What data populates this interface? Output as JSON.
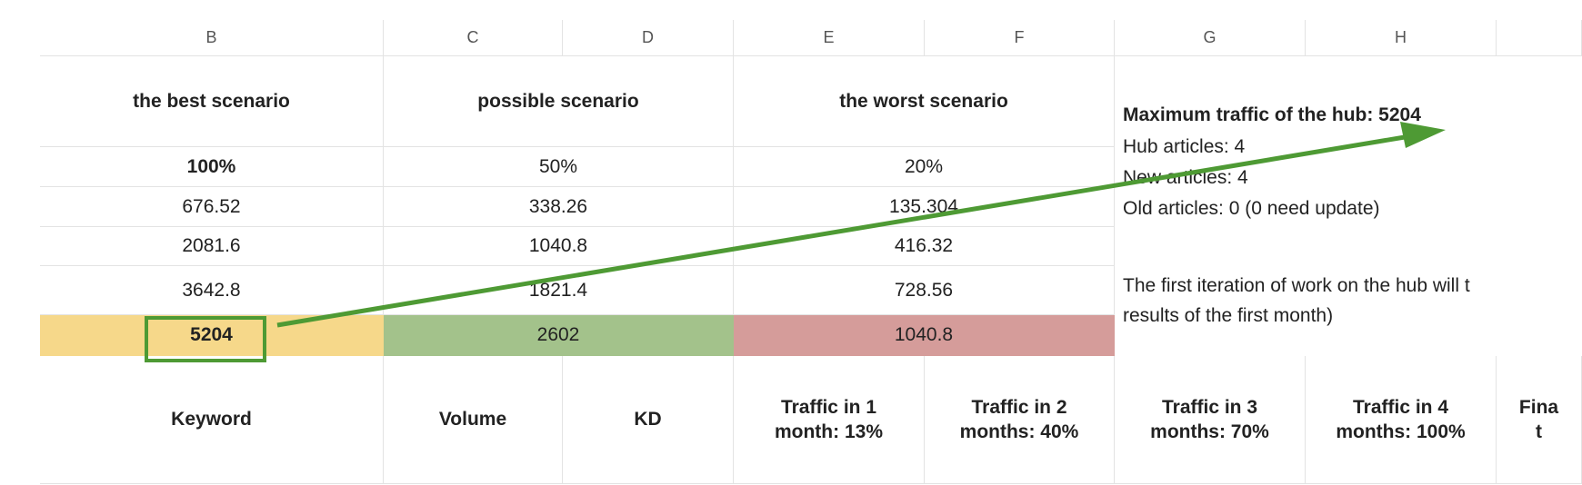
{
  "column_headers": [
    "B",
    "C",
    "D",
    "E",
    "F",
    "G",
    "H"
  ],
  "scenarios": [
    {
      "title": "the best scenario",
      "percent": "100%",
      "rows": [
        "676.52",
        "2081.6",
        "3642.8"
      ],
      "total": "5204"
    },
    {
      "title": "possible scenario",
      "percent": "50%",
      "rows": [
        "338.26",
        "1040.8",
        "1821.4"
      ],
      "total": "2602"
    },
    {
      "title": "the worst scenario",
      "percent": "20%",
      "rows": [
        "135.304",
        "416.32",
        "728.56"
      ],
      "total": "1040.8"
    }
  ],
  "summary": {
    "heading": "Maximum traffic of the hub: 5204",
    "lines": [
      "Hub articles: 4",
      "New articles: 4",
      "Old articles: 0 (0 need update)"
    ],
    "note": [
      "The first iteration of work on the hub will t",
      "results of the first month)"
    ]
  },
  "table_headers": [
    "Keyword",
    "Volume",
    "KD",
    "Traffic in 1\nmonth: 13%",
    "Traffic in 2\nmonths: 40%",
    "Traffic in 3\nmonths: 70%",
    "Traffic in 4\nmonths: 100%",
    "Fina\nt"
  ]
}
